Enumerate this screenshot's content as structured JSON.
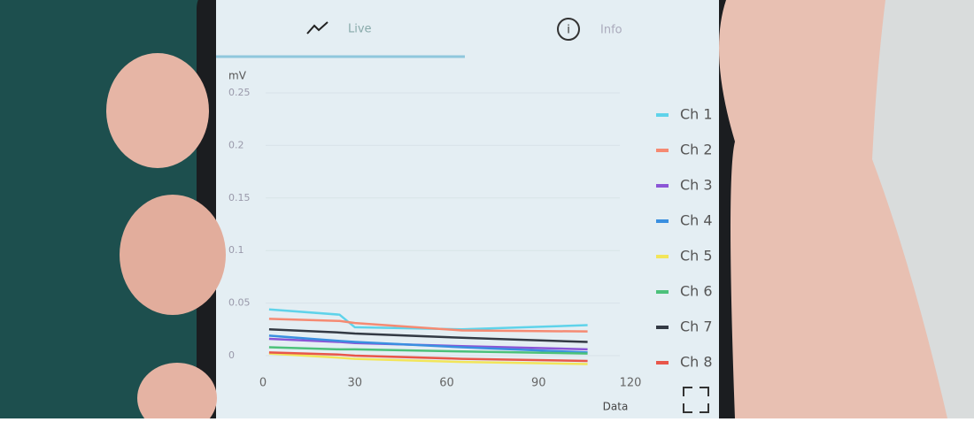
{
  "tabs": [
    "Live",
    "Info"
  ],
  "chart_data": {
    "type": "line",
    "y_label": "mV",
    "x_label": "Data",
    "x": [
      2,
      25,
      30,
      65,
      106
    ],
    "xlim": [
      0,
      120
    ],
    "xticks": [
      0,
      30,
      60,
      90,
      120
    ],
    "ylim": [
      0,
      0.25
    ],
    "yticks": [
      0,
      0.05,
      0.1,
      0.15,
      0.2,
      0.25
    ],
    "grid": true,
    "legend": "right",
    "series": [
      {
        "name": "Ch 1",
        "color": "#5fd3ea",
        "values": [
          0.044,
          0.039,
          0.027,
          0.025,
          0.029
        ]
      },
      {
        "name": "Ch 2",
        "color": "#f58a72",
        "values": [
          0.035,
          0.033,
          0.031,
          0.024,
          0.023
        ]
      },
      {
        "name": "Ch 3",
        "color": "#8b55d6",
        "values": [
          0.016,
          0.013,
          0.012,
          0.009,
          0.006
        ]
      },
      {
        "name": "Ch 4",
        "color": "#3a8fe0",
        "values": [
          0.019,
          0.014,
          0.013,
          0.008,
          0.003
        ]
      },
      {
        "name": "Ch 5",
        "color": "#f2e55a",
        "values": [
          0.002,
          -0.002,
          -0.003,
          -0.006,
          -0.008
        ]
      },
      {
        "name": "Ch 6",
        "color": "#4cc17a",
        "values": [
          0.008,
          0.006,
          0.006,
          0.004,
          0.002
        ]
      },
      {
        "name": "Ch 7",
        "color": "#333a44",
        "values": [
          0.025,
          0.022,
          0.021,
          0.017,
          0.013
        ]
      },
      {
        "name": "Ch 8",
        "color": "#e8564a",
        "values": [
          0.003,
          0.001,
          0.0,
          -0.003,
          -0.005
        ]
      }
    ]
  }
}
